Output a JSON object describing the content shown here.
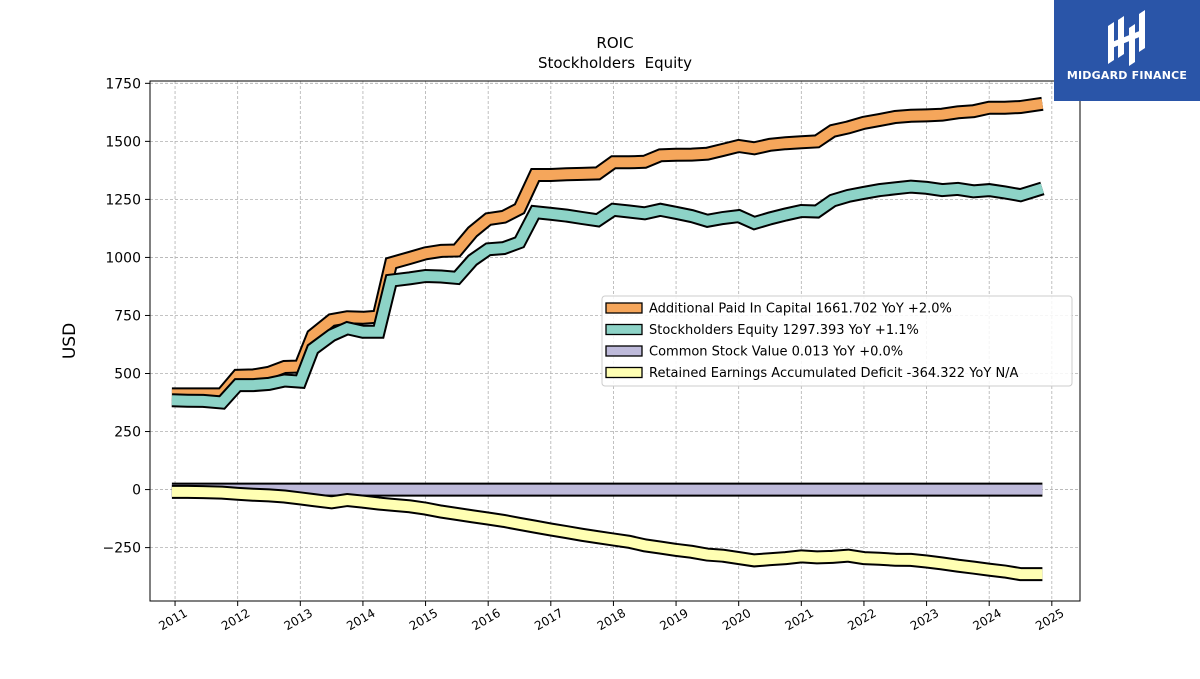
{
  "chart_data": {
    "type": "line",
    "title": "ROIC",
    "subtitle": "Stockholders  Equity",
    "xlabel": "",
    "ylabel": "USD",
    "xlim": [
      2010.6,
      2025.45
    ],
    "ylim": [
      -480,
      1760
    ],
    "x_ticks": [
      "2011",
      "2012",
      "2013",
      "2014",
      "2015",
      "2016",
      "2017",
      "2018",
      "2019",
      "2020",
      "2021",
      "2022",
      "2023",
      "2024",
      "2025"
    ],
    "y_ticks": [
      -250,
      0,
      250,
      500,
      750,
      1000,
      1250,
      1500,
      1750
    ],
    "y_tick_labels": [
      "−250",
      "0",
      "250",
      "500",
      "750",
      "1000",
      "1250",
      "1500",
      "1750"
    ],
    "grid": true,
    "legend_position": "center-right",
    "x": [
      2010.95,
      2011.2,
      2011.45,
      2011.75,
      2012.0,
      2012.25,
      2012.5,
      2012.75,
      2013.0,
      2013.2,
      2013.5,
      2013.75,
      2014.0,
      2014.25,
      2014.45,
      2014.75,
      2015.0,
      2015.25,
      2015.5,
      2015.75,
      2016.0,
      2016.25,
      2016.5,
      2016.75,
      2017.0,
      2017.25,
      2017.5,
      2017.75,
      2018.0,
      2018.25,
      2018.5,
      2018.75,
      2019.0,
      2019.25,
      2019.5,
      2019.75,
      2020.0,
      2020.25,
      2020.5,
      2020.75,
      2021.0,
      2021.25,
      2021.5,
      2021.75,
      2022.0,
      2022.25,
      2022.5,
      2022.75,
      2023.0,
      2023.25,
      2023.5,
      2023.75,
      2024.0,
      2024.25,
      2024.5,
      2024.85
    ],
    "series": [
      {
        "name": "Additional Paid In Capital",
        "legend": "Additional Paid In Capital  1661.702 YoY +2.0%",
        "color": "#f5a65b",
        "values": [
          410,
          410,
          410,
          410,
          490,
          492,
          503,
          528,
          530,
          665,
          730,
          742,
          740,
          745,
          975,
          998,
          1018,
          1028,
          1030,
          1110,
          1165,
          1175,
          1210,
          1355,
          1355,
          1358,
          1360,
          1362,
          1410,
          1410,
          1412,
          1440,
          1442,
          1443,
          1447,
          1463,
          1480,
          1470,
          1485,
          1492,
          1496,
          1500,
          1545,
          1560,
          1580,
          1592,
          1605,
          1610,
          1612,
          1615,
          1625,
          1630,
          1645,
          1645,
          1648,
          1661.702
        ]
      },
      {
        "name": "Stockholders Equity",
        "legend": "Stockholders Equity  1297.393 YoY +1.1%",
        "color": "#8dd3c7",
        "values": [
          385,
          383,
          382,
          375,
          450,
          450,
          455,
          470,
          465,
          605,
          665,
          695,
          680,
          680,
          900,
          910,
          920,
          918,
          912,
          988,
          1035,
          1040,
          1065,
          1195,
          1188,
          1180,
          1170,
          1160,
          1205,
          1198,
          1190,
          1205,
          1192,
          1178,
          1158,
          1170,
          1178,
          1148,
          1168,
          1185,
          1200,
          1198,
          1245,
          1265,
          1278,
          1290,
          1298,
          1305,
          1300,
          1290,
          1295,
          1285,
          1290,
          1280,
          1268,
          1297.393
        ]
      },
      {
        "name": "Common Stock Value",
        "legend": "Common Stock Value  0.013 YoY +0.0%",
        "color": "#bebada",
        "values": [
          0.013,
          0.013,
          0.013,
          0.013,
          0.013,
          0.013,
          0.013,
          0.013,
          0.013,
          0.013,
          0.013,
          0.013,
          0.013,
          0.013,
          0.013,
          0.013,
          0.013,
          0.013,
          0.013,
          0.013,
          0.013,
          0.013,
          0.013,
          0.013,
          0.013,
          0.013,
          0.013,
          0.013,
          0.013,
          0.013,
          0.013,
          0.013,
          0.013,
          0.013,
          0.013,
          0.013,
          0.013,
          0.013,
          0.013,
          0.013,
          0.013,
          0.013,
          0.013,
          0.013,
          0.013,
          0.013,
          0.013,
          0.013,
          0.013,
          0.013,
          0.013,
          0.013,
          0.013,
          0.013,
          0.013,
          0.013
        ]
      },
      {
        "name": "Retained Earnings Accumulated Deficit",
        "legend": "Retained Earnings Accumulated Deficit  -364.322 YoY N/A",
        "color": "#ffffb3",
        "values": [
          -10,
          -10,
          -11,
          -13,
          -18,
          -22,
          -25,
          -30,
          -38,
          -45,
          -55,
          -45,
          -52,
          -60,
          -65,
          -72,
          -82,
          -95,
          -105,
          -115,
          -125,
          -135,
          -148,
          -160,
          -172,
          -183,
          -195,
          -205,
          -215,
          -225,
          -240,
          -250,
          -260,
          -268,
          -280,
          -285,
          -295,
          -305,
          -300,
          -295,
          -288,
          -292,
          -290,
          -285,
          -295,
          -298,
          -302,
          -303,
          -310,
          -318,
          -328,
          -336,
          -345,
          -353,
          -364,
          -364.322
        ]
      }
    ]
  },
  "logo": {
    "text": "MIDGARD FINANCE",
    "background": "#2a55a8"
  }
}
